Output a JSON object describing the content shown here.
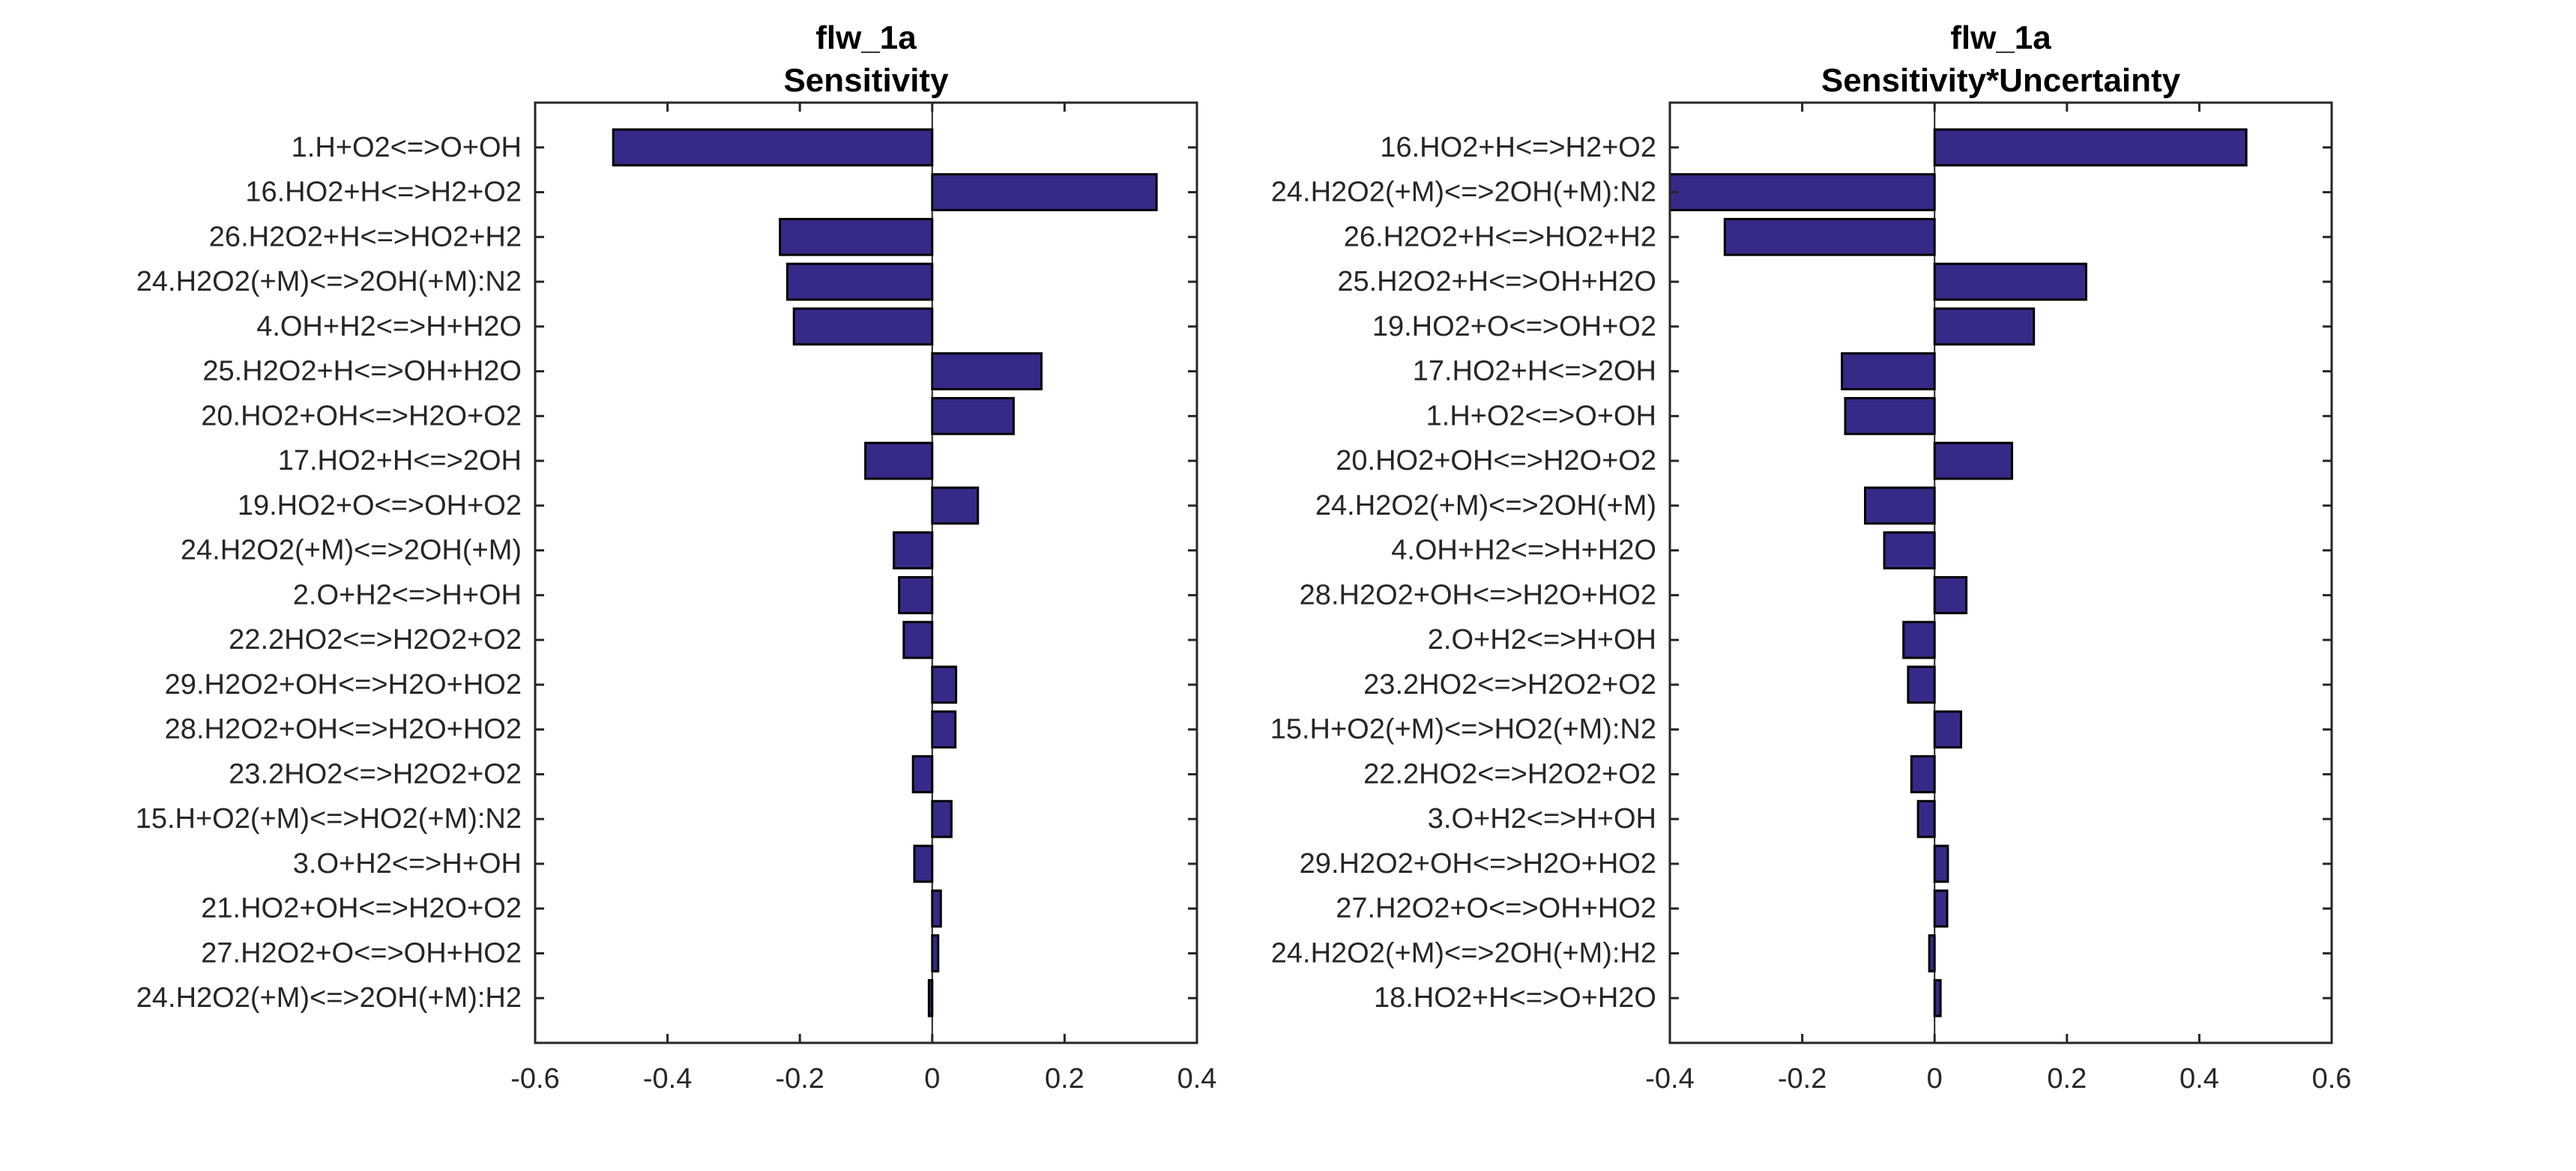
{
  "colors": {
    "bar_fill": "#352A87",
    "bar_edge": "#000000",
    "axis": "#262626",
    "text": "#262626"
  },
  "chart_data": [
    {
      "type": "bar",
      "orientation": "horizontal",
      "title": "flw_1a",
      "subtitle": "Sensitivity",
      "xlabel": "",
      "ylabel": "",
      "xlim": [
        -0.6,
        0.4
      ],
      "xticks": [
        -0.6,
        -0.4,
        -0.2,
        0,
        0.2,
        0.4
      ],
      "xtick_labels": [
        "-0.6",
        "-0.4",
        "-0.2",
        "0",
        "0.2",
        "0.4"
      ],
      "grid": false,
      "categories": [
        "1.H+O2<=>O+OH",
        "16.HO2+H<=>H2+O2",
        "26.H2O2+H<=>HO2+H2",
        "24.H2O2(+M)<=>2OH(+M):N2",
        "4.OH+H2<=>H+H2O",
        "25.H2O2+H<=>OH+H2O",
        "20.HO2+OH<=>H2O+O2",
        "17.HO2+H<=>2OH",
        "19.HO2+O<=>OH+O2",
        "24.H2O2(+M)<=>2OH(+M)",
        "2.O+H2<=>H+OH",
        "22.2HO2<=>H2O2+O2",
        "29.H2O2+OH<=>H2O+HO2",
        "28.H2O2+OH<=>H2O+HO2",
        "23.2HO2<=>H2O2+O2",
        "15.H+O2(+M)<=>HO2(+M):N2",
        "3.O+H2<=>H+OH",
        "21.HO2+OH<=>H2O+O2",
        "27.H2O2+O<=>OH+HO2",
        "24.H2O2(+M)<=>2OH(+M):H2"
      ],
      "values": [
        -0.482,
        0.339,
        -0.23,
        -0.219,
        -0.209,
        0.165,
        0.123,
        -0.101,
        0.069,
        -0.058,
        -0.05,
        -0.043,
        0.036,
        0.035,
        -0.029,
        0.029,
        -0.027,
        0.013,
        0.009,
        -0.005
      ]
    },
    {
      "type": "bar",
      "orientation": "horizontal",
      "title": "flw_1a",
      "subtitle": "Sensitivity*Uncertainty",
      "xlabel": "",
      "ylabel": "",
      "xlim": [
        -0.4,
        0.6
      ],
      "xticks": [
        -0.4,
        -0.2,
        0,
        0.2,
        0.4,
        0.6
      ],
      "xtick_labels": [
        "-0.4",
        "-0.2",
        "0",
        "0.2",
        "0.4",
        "0.6"
      ],
      "grid": false,
      "categories": [
        "16.HO2+H<=>H2+O2",
        "24.H2O2(+M)<=>2OH(+M):N2",
        "26.H2O2+H<=>HO2+H2",
        "25.H2O2+H<=>OH+H2O",
        "19.HO2+O<=>OH+O2",
        "17.HO2+H<=>2OH",
        "1.H+O2<=>O+OH",
        "20.HO2+OH<=>H2O+O2",
        "24.H2O2(+M)<=>2OH(+M)",
        "4.OH+H2<=>H+H2O",
        "28.H2O2+OH<=>H2O+HO2",
        "2.O+H2<=>H+OH",
        "23.2HO2<=>H2O2+O2",
        "15.H+O2(+M)<=>HO2(+M):N2",
        "22.2HO2<=>H2O2+O2",
        "3.O+H2<=>H+OH",
        "29.H2O2+OH<=>H2O+HO2",
        "27.H2O2+O<=>OH+HO2",
        "24.H2O2(+M)<=>2OH(+M):H2",
        "18.HO2+H<=>O+H2O"
      ],
      "values": [
        0.471,
        -0.4,
        -0.317,
        0.229,
        0.15,
        -0.14,
        -0.135,
        0.117,
        -0.105,
        -0.076,
        0.048,
        -0.047,
        -0.04,
        0.04,
        -0.035,
        -0.025,
        0.02,
        0.019,
        -0.008,
        0.009
      ]
    }
  ]
}
